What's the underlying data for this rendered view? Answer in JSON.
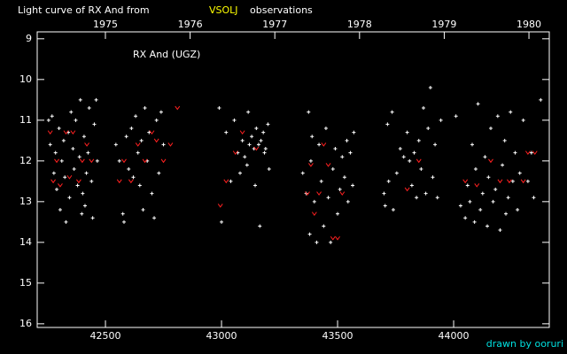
{
  "chart_data": {
    "type": "scatter",
    "title": "Light curve of RX And from",
    "title_source": "VSOLJ",
    "title_suffix": "observations",
    "annotation": "RX And (UGZ)",
    "credit": "drawn by ooruri",
    "invert_y": true,
    "xlim": [
      42206,
      44412
    ],
    "xticks": [
      42500,
      43000,
      43500,
      44000
    ],
    "ylim": [
      8.83,
      16.09
    ],
    "yticks": [
      9,
      10,
      11,
      12,
      13,
      14,
      15,
      16
    ],
    "x2lim": [
      1974.195,
      1980.24
    ],
    "x2ticks": [
      1975,
      1976,
      1977,
      1978,
      1979,
      1980
    ],
    "series": [
      {
        "color": "#ffffff",
        "marker": "plus",
        "x": [
          42255,
          42262,
          42270,
          42278,
          42285,
          42290,
          42300,
          42305,
          42312,
          42320,
          42325,
          42330,
          42340,
          42345,
          42352,
          42360,
          42365,
          42372,
          42380,
          42388,
          42392,
          42398,
          42402,
          42408,
          42412,
          42418,
          42425,
          42430,
          42440,
          42445,
          42452,
          42460,
          42465,
          42545,
          42560,
          42575,
          42580,
          42590,
          42600,
          42612,
          42620,
          42630,
          42640,
          42648,
          42655,
          42662,
          42670,
          42680,
          42688,
          42700,
          42710,
          42720,
          42730,
          42740,
          42750,
          42990,
          43000,
          43020,
          43040,
          43055,
          43070,
          43080,
          43090,
          43100,
          43110,
          43115,
          43120,
          43130,
          43140,
          43145,
          43150,
          43160,
          43165,
          43170,
          43180,
          43185,
          43190,
          43200,
          43205,
          43350,
          43365,
          43375,
          43380,
          43385,
          43390,
          43400,
          43410,
          43420,
          43430,
          43440,
          43450,
          43460,
          43470,
          43480,
          43490,
          43500,
          43510,
          43520,
          43530,
          43540,
          43545,
          43555,
          43565,
          43570,
          43700,
          43705,
          43715,
          43720,
          43735,
          43740,
          43755,
          43770,
          43785,
          43800,
          43810,
          43820,
          43830,
          43840,
          43850,
          43860,
          43870,
          43880,
          43890,
          43900,
          43910,
          43920,
          43930,
          43945,
          44010,
          44030,
          44050,
          44060,
          44070,
          44080,
          44090,
          44095,
          44105,
          44115,
          44125,
          44135,
          44145,
          44150,
          44160,
          44170,
          44180,
          44190,
          44200,
          44210,
          44220,
          44225,
          44235,
          44245,
          44255,
          44265,
          44275,
          44285,
          44300,
          44320,
          44335,
          44345,
          44375
        ],
        "values": [
          11.0,
          11.6,
          10.9,
          12.3,
          11.8,
          12.7,
          11.2,
          13.2,
          12.0,
          11.5,
          12.4,
          13.5,
          11.3,
          12.9,
          10.8,
          11.7,
          12.2,
          11.0,
          12.6,
          11.9,
          10.5,
          13.3,
          12.8,
          11.4,
          13.1,
          12.3,
          11.8,
          10.7,
          12.5,
          13.4,
          11.1,
          10.5,
          12.0,
          11.6,
          12.0,
          13.3,
          13.5,
          11.4,
          12.2,
          11.2,
          12.4,
          10.9,
          11.8,
          12.6,
          11.5,
          13.2,
          10.7,
          12.0,
          11.3,
          12.8,
          13.4,
          11.0,
          12.3,
          10.8,
          11.6,
          10.7,
          13.5,
          11.3,
          12.5,
          11.0,
          11.8,
          12.3,
          11.5,
          11.9,
          12.1,
          10.8,
          11.6,
          11.4,
          11.7,
          12.6,
          11.2,
          11.6,
          13.6,
          11.5,
          11.3,
          11.8,
          11.7,
          11.1,
          12.2,
          12.3,
          12.8,
          10.8,
          13.8,
          12.0,
          11.4,
          13.0,
          14.0,
          11.6,
          12.5,
          13.6,
          11.2,
          12.9,
          14.0,
          12.2,
          11.7,
          13.3,
          12.7,
          11.9,
          12.4,
          11.5,
          13.0,
          11.8,
          12.6,
          11.3,
          12.8,
          13.1,
          11.1,
          12.5,
          10.8,
          13.2,
          12.3,
          11.7,
          11.9,
          11.3,
          12.0,
          12.6,
          11.8,
          12.9,
          11.5,
          12.2,
          10.7,
          12.8,
          11.2,
          10.2,
          12.4,
          11.6,
          12.9,
          11.0,
          10.9,
          13.1,
          13.4,
          12.6,
          13.0,
          11.6,
          13.5,
          12.2,
          10.6,
          13.2,
          12.8,
          11.9,
          13.6,
          12.4,
          11.2,
          13.0,
          12.7,
          10.9,
          13.7,
          12.1,
          11.5,
          13.3,
          12.9,
          10.8,
          12.5,
          11.8,
          13.2,
          12.3,
          11.0,
          12.5,
          11.8,
          12.9,
          10.5
        ]
      },
      {
        "color": "#ff2020",
        "marker": "v",
        "x": [
          42262,
          42275,
          42290,
          42305,
          42330,
          42345,
          42360,
          42385,
          42400,
          42420,
          42440,
          42560,
          42580,
          42610,
          42640,
          42670,
          42700,
          42720,
          42750,
          42780,
          42810,
          42995,
          43020,
          43060,
          43090,
          43150,
          43370,
          43385,
          43400,
          43420,
          43440,
          43460,
          43480,
          43500,
          43520,
          43800,
          43850,
          44050,
          44100,
          44160,
          44200,
          44240,
          44300,
          44320,
          44350
        ],
        "values": [
          11.3,
          12.5,
          12.0,
          12.6,
          11.3,
          12.4,
          11.3,
          12.5,
          12.0,
          11.6,
          12.0,
          12.5,
          12.0,
          12.5,
          11.6,
          12.0,
          11.3,
          11.5,
          12.0,
          11.6,
          10.7,
          13.1,
          12.5,
          11.8,
          11.3,
          11.7,
          12.8,
          12.1,
          13.3,
          12.8,
          11.6,
          12.1,
          13.9,
          13.9,
          12.8,
          12.7,
          12.0,
          12.5,
          12.6,
          12.0,
          12.5,
          12.5,
          12.5,
          11.8,
          11.8
        ]
      }
    ]
  }
}
